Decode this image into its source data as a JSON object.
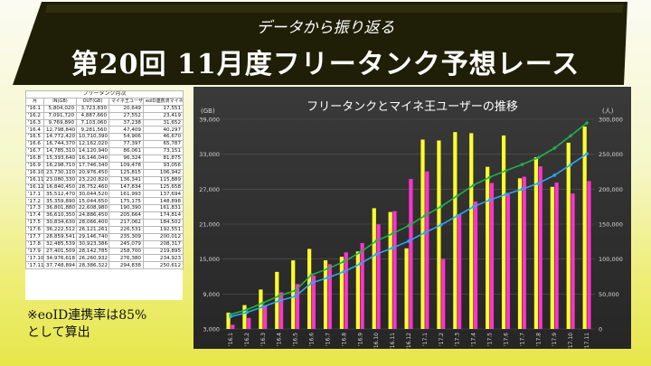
{
  "header": {
    "subtitle": "データから振り返る",
    "title": "第20回 11月度フリータンク予想レース",
    "banner_color": "#1e1f06"
  },
  "table": {
    "caption": "フリータンク月次",
    "columns": [
      "月",
      "IN(GB)",
      "OUT(GB)",
      "マイネ王ユーザー(人)",
      "eoID連携済マイネ王ユーザー(人)"
    ],
    "rows": [
      [
        "'16.1",
        "5,804,020",
        "3,723,830",
        "20,649",
        "17,551"
      ],
      [
        "'16.2",
        "7,091,720",
        "4,887,660",
        "27,552",
        "23,419"
      ],
      [
        "'16.3",
        "9,769,890",
        "7,103,060",
        "37,238",
        "31,652"
      ],
      [
        "'16.4",
        "12,798,840",
        "9,281,560",
        "47,409",
        "40,297"
      ],
      [
        "'16.5",
        "14,772,420",
        "10,710,390",
        "54,906",
        "46,670"
      ],
      [
        "'16.6",
        "16,744,370",
        "12,162,020",
        "77,397",
        "65,787"
      ],
      [
        "'16.7",
        "14,785,310",
        "14,120,940",
        "86,061",
        "73,151"
      ],
      [
        "'16.8",
        "15,393,640",
        "16,146,040",
        "96,324",
        "81,875"
      ],
      [
        "'16.9",
        "16,298,710",
        "17,746,340",
        "109,478",
        "93,056"
      ],
      [
        "'16.10",
        "23,730,110",
        "20,976,450",
        "125,815",
        "106,942"
      ],
      [
        "'16.11",
        "23,080,330",
        "23,220,820",
        "136,341",
        "115,889"
      ],
      [
        "'16.12",
        "16,840,450",
        "28,752,460",
        "147,834",
        "125,658"
      ],
      [
        "'17.1",
        "35,512,470",
        "30,044,520",
        "161,993",
        "137,694"
      ],
      [
        "'17.2",
        "35,359,890",
        "15,044,650",
        "175,175",
        "148,898"
      ],
      [
        "'17.3",
        "36,801,880",
        "22,608,980",
        "190,390",
        "161,831"
      ],
      [
        "'17.4",
        "36,610,350",
        "24,886,450",
        "205,664",
        "174,814"
      ],
      [
        "'17.5",
        "30,834,630",
        "28,066,400",
        "217,062",
        "184,502"
      ],
      [
        "'17.6",
        "36,222,512",
        "26,121,261",
        "226,531",
        "192,551"
      ],
      [
        "'17.7",
        "28,859,541",
        "29,146,740",
        "235,309",
        "200,012"
      ],
      [
        "'17.8",
        "32,485,539",
        "30,923,386",
        "245,079",
        "208,317"
      ],
      [
        "'17.9",
        "27,401,509",
        "28,142,785",
        "258,700",
        "219,895"
      ],
      [
        "'17.10",
        "34,976,618",
        "26,260,932",
        "276,380",
        "234,923"
      ],
      [
        "'17.11",
        "37,748,894",
        "28,386,322",
        "294,838",
        "250,612"
      ]
    ]
  },
  "note": {
    "line1": "※eoID連携率は85%",
    "line2": "として算出"
  },
  "chart_data": {
    "type": "bar",
    "title": "フリータンクとマイネ王ユーザーの推移",
    "ylabel_left": "(GB)",
    "ylabel_right": "(人)",
    "ylim_left": [
      3000,
      39000
    ],
    "yticks_left": [
      "3,000",
      "9,000",
      "15,000",
      "21,000",
      "27,000",
      "33,000",
      "39,000"
    ],
    "yticks_left_values": [
      3000,
      9000,
      15000,
      21000,
      27000,
      33000,
      39000
    ],
    "ylim_right": [
      0,
      300000
    ],
    "yticks_right": [
      "0",
      "50,000",
      "100,000",
      "150,000",
      "200,000",
      "250,000",
      "300,000"
    ],
    "yticks_right_values": [
      0,
      50000,
      100000,
      150000,
      200000,
      250000,
      300000
    ],
    "categories": [
      "'16.1",
      "'16.2",
      "'16.3",
      "'16.4",
      "'16.5",
      "'16.6",
      "'16.7",
      "'16.8",
      "'16.9",
      "'16.10",
      "'16.11",
      "'16.12",
      "'17.1",
      "'17.2",
      "'17.3",
      "'17.4",
      "'17.5",
      "'17.6",
      "'17.7",
      "'17.8",
      "'17.9",
      "'17.10",
      "'17.11"
    ],
    "series": [
      {
        "name": "IN(GB)",
        "kind": "bar",
        "axis": "left",
        "color": "#ffff2e",
        "values": [
          5804,
          7092,
          9770,
          12799,
          14772,
          16744,
          14785,
          15394,
          16299,
          23730,
          23080,
          16840,
          35512,
          35360,
          36802,
          36610,
          30835,
          36223,
          28860,
          32486,
          27402,
          34977,
          37749
        ]
      },
      {
        "name": "OUT(GB)",
        "kind": "bar",
        "axis": "left",
        "color": "#ff33cc",
        "values": [
          3724,
          4888,
          7103,
          9282,
          10710,
          12162,
          14121,
          16146,
          17746,
          20976,
          23221,
          28752,
          30045,
          15045,
          22609,
          24886,
          28066,
          26121,
          29147,
          30923,
          28143,
          26261,
          28386
        ]
      },
      {
        "name": "マイネ王ユーザー(人)",
        "kind": "line",
        "axis": "right",
        "color": "#22b14c",
        "values": [
          20649,
          27552,
          37238,
          47409,
          54906,
          77397,
          86061,
          96324,
          109478,
          125815,
          136341,
          147834,
          161993,
          175175,
          190390,
          205664,
          217062,
          226531,
          235309,
          245079,
          258700,
          276380,
          294838
        ]
      },
      {
        "name": "eoID連携済マイネ王ユーザー(人)",
        "kind": "line",
        "axis": "right",
        "color": "#2aa8ee",
        "values": [
          17551,
          23419,
          31652,
          40297,
          46670,
          65787,
          73151,
          81875,
          93056,
          106942,
          115889,
          125658,
          137694,
          148898,
          161831,
          174814,
          184502,
          192551,
          200012,
          208317,
          219895,
          234923,
          250612
        ]
      }
    ],
    "grid": true
  }
}
